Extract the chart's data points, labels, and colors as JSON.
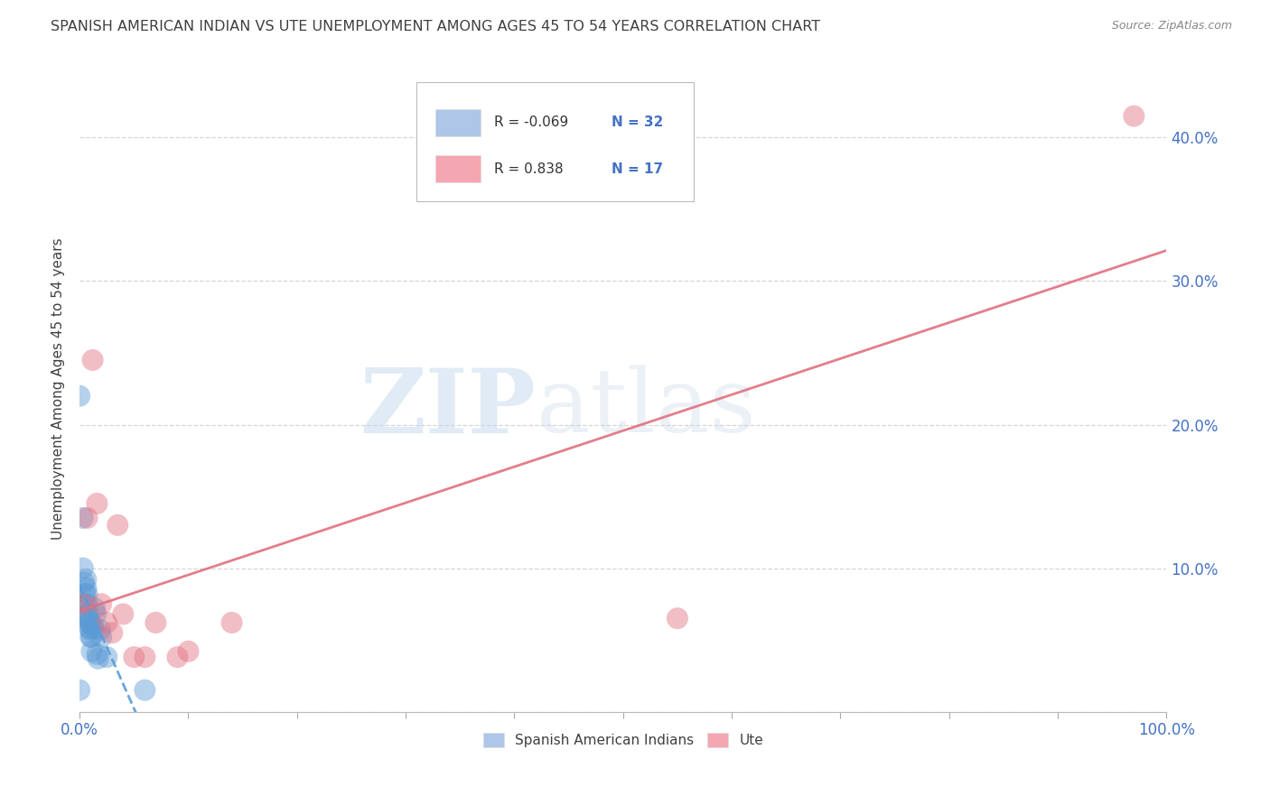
{
  "title": "SPANISH AMERICAN INDIAN VS UTE UNEMPLOYMENT AMONG AGES 45 TO 54 YEARS CORRELATION CHART",
  "source": "Source: ZipAtlas.com",
  "ylabel": "Unemployment Among Ages 45 to 54 years",
  "xlim": [
    0,
    1.0
  ],
  "ylim": [
    0,
    0.45
  ],
  "xticks": [
    0.0,
    0.1,
    0.2,
    0.3,
    0.4,
    0.5,
    0.6,
    0.7,
    0.8,
    0.9,
    1.0
  ],
  "xticklabels": [
    "0.0%",
    "",
    "",
    "",
    "",
    "",
    "",
    "",
    "",
    "",
    "100.0%"
  ],
  "yticks": [
    0.0,
    0.1,
    0.2,
    0.3,
    0.4
  ],
  "yticklabels": [
    "",
    "10.0%",
    "20.0%",
    "30.0%",
    "40.0%"
  ],
  "legend_entries": [
    {
      "label": "Spanish American Indians",
      "color": "#aec6e8",
      "R": "-0.069",
      "N": "32"
    },
    {
      "label": "Ute",
      "color": "#f4a7b0",
      "R": "0.838",
      "N": "17"
    }
  ],
  "blue_scatter_x": [
    0.0,
    0.0,
    0.003,
    0.003,
    0.004,
    0.005,
    0.005,
    0.005,
    0.006,
    0.006,
    0.007,
    0.007,
    0.007,
    0.008,
    0.008,
    0.009,
    0.009,
    0.01,
    0.01,
    0.01,
    0.011,
    0.011,
    0.012,
    0.013,
    0.014,
    0.015,
    0.016,
    0.017,
    0.019,
    0.02,
    0.025,
    0.06
  ],
  "blue_scatter_y": [
    0.22,
    0.015,
    0.135,
    0.1,
    0.09,
    0.082,
    0.075,
    0.067,
    0.092,
    0.086,
    0.082,
    0.075,
    0.068,
    0.068,
    0.062,
    0.063,
    0.058,
    0.062,
    0.057,
    0.052,
    0.052,
    0.042,
    0.06,
    0.058,
    0.072,
    0.068,
    0.04,
    0.037,
    0.057,
    0.052,
    0.038,
    0.015
  ],
  "pink_scatter_x": [
    0.003,
    0.007,
    0.012,
    0.016,
    0.02,
    0.025,
    0.03,
    0.035,
    0.04,
    0.05,
    0.06,
    0.07,
    0.09,
    0.1,
    0.14,
    0.55,
    0.97
  ],
  "pink_scatter_y": [
    0.075,
    0.135,
    0.245,
    0.145,
    0.075,
    0.062,
    0.055,
    0.13,
    0.068,
    0.038,
    0.038,
    0.062,
    0.038,
    0.042,
    0.062,
    0.065,
    0.415
  ],
  "blue_line_color": "#5b9bd5",
  "blue_line_style": "dashed",
  "pink_line_color": "#e07080",
  "pink_line_style": "solid",
  "blue_R": -0.069,
  "pink_R": 0.838,
  "blue_line_x0": 0.0,
  "blue_line_x1": 0.42,
  "pink_line_x0": 0.0,
  "pink_line_x1": 1.0,
  "watermark_text": "ZIPatlas",
  "background_color": "#ffffff",
  "grid_color": "#cccccc",
  "title_color": "#404040",
  "tick_color_y": "#4472c4",
  "tick_color_x": "#4472c4"
}
